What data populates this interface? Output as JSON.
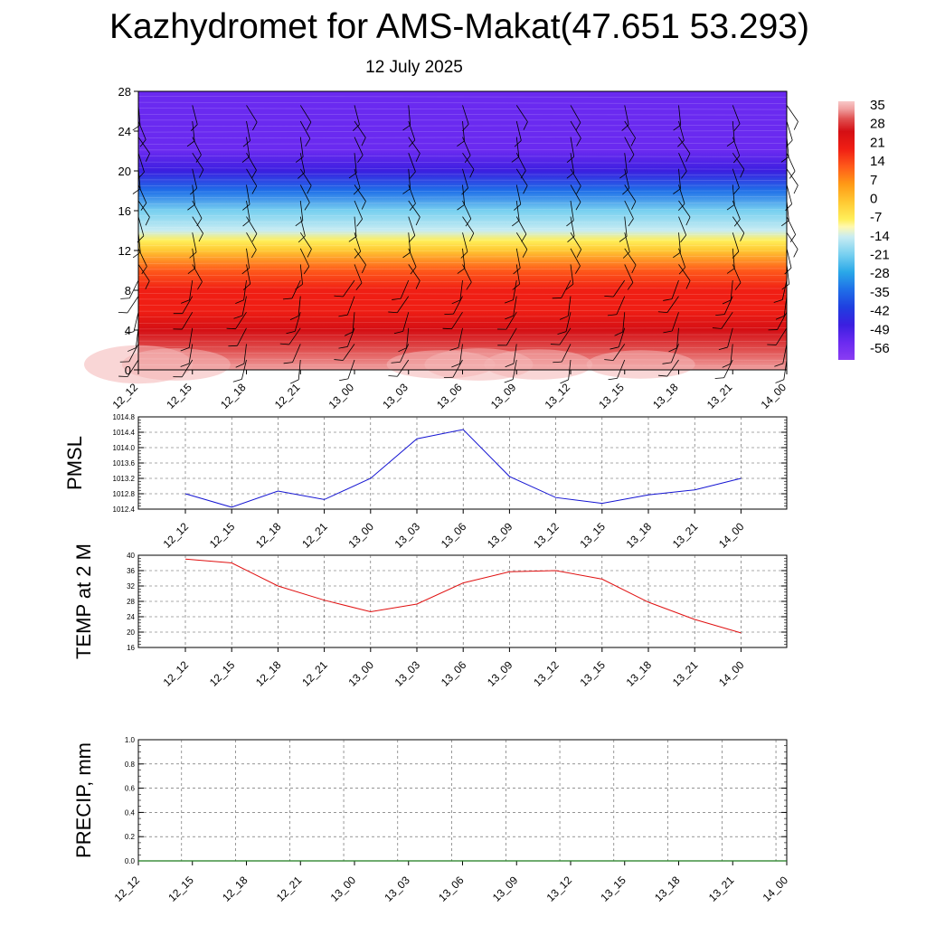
{
  "header": {
    "title": "Kazhydromet for AMS-Makat(47.651 53.293)",
    "date": "12 July 2025"
  },
  "chart_data": [
    {
      "type": "heatmap",
      "title": "",
      "xlabel": "",
      "ylabel": "",
      "x_ticks": [
        "12_12",
        "12_15",
        "12_18",
        "12_21",
        "13_00",
        "13_03",
        "13_06",
        "13_09",
        "13_12",
        "13_15",
        "13_18",
        "13_21",
        "14_00"
      ],
      "y_ticks": [
        "0",
        "4",
        "8",
        "12",
        "16",
        "20",
        "24",
        "28"
      ],
      "ylim": [
        0,
        28
      ],
      "colorbar_labels": [
        "35",
        "28",
        "21",
        "14",
        "7",
        "0",
        "-7",
        "-14",
        "-21",
        "-28",
        "-35",
        "-42",
        "-49",
        "-56"
      ],
      "colorbar_range": [
        -63,
        40
      ],
      "temperature_profile": {
        "levels": [
          0,
          2,
          4,
          6,
          8,
          10,
          12,
          13,
          14,
          16,
          18,
          20,
          22,
          24,
          26,
          28
        ],
        "values": [
          38,
          33,
          28,
          24,
          18,
          12,
          3,
          -5,
          -14,
          -24,
          -36,
          -48,
          -55,
          -58,
          -57,
          -56
        ]
      },
      "overlay": "wind barbs",
      "colors": [
        "#f7c0c0",
        "#d40f14",
        "#ff3a1a",
        "#ff9a16",
        "#ffe832",
        "#fffb9a",
        "#b8e4f0",
        "#2aa8e8",
        "#1f5fe8",
        "#3b1fe0",
        "#6a2af0",
        "#8a3cf2"
      ]
    },
    {
      "type": "line",
      "ylabel": "PMSL",
      "x_ticks": [
        "12_12",
        "12_15",
        "12_18",
        "12_21",
        "13_00",
        "13_03",
        "13_06",
        "13_09",
        "13_12",
        "13_15",
        "13_18",
        "13_21",
        "14_00"
      ],
      "y_ticks": [
        "1012.4",
        "1012.8",
        "1013.2",
        "1013.6",
        "1014.0",
        "1014.4",
        "1014.8"
      ],
      "ylim": [
        1012.4,
        1014.8
      ],
      "series": [
        {
          "color": "#1414d2",
          "values": [
            1012.8,
            1012.45,
            1012.87,
            1012.65,
            1013.2,
            1014.23,
            1014.47,
            1013.25,
            1012.7,
            1012.55,
            1012.77,
            1012.9,
            1013.2
          ]
        }
      ]
    },
    {
      "type": "line",
      "ylabel": "TEMP at 2 M",
      "x_ticks": [
        "12_12",
        "12_15",
        "12_18",
        "12_21",
        "13_00",
        "13_03",
        "13_06",
        "13_09",
        "13_12",
        "13_15",
        "13_18",
        "13_21",
        "14_00"
      ],
      "y_ticks": [
        "16",
        "20",
        "24",
        "28",
        "32",
        "36",
        "40"
      ],
      "ylim": [
        16,
        40
      ],
      "series": [
        {
          "color": "#e01010",
          "values": [
            39.0,
            38.0,
            32.0,
            28.3,
            25.3,
            27.3,
            32.8,
            35.7,
            36.0,
            33.8,
            27.8,
            23.3,
            19.8
          ]
        }
      ]
    },
    {
      "type": "line",
      "ylabel": "PRECIP, mm",
      "x_ticks": [
        "12_12",
        "12_15",
        "12_18",
        "12_21",
        "13_00",
        "13_03",
        "13_06",
        "13_09",
        "13_12",
        "13_15",
        "13_18",
        "13_21",
        "14_00"
      ],
      "y_ticks": [
        "0.0",
        "0.2",
        "0.4",
        "0.6",
        "0.8",
        "1.0"
      ],
      "ylim": [
        0,
        1
      ],
      "series": [
        {
          "color": "#1a7a1a",
          "values": [
            0,
            0,
            0,
            0,
            0,
            0,
            0,
            0,
            0,
            0,
            0,
            0,
            0
          ]
        }
      ]
    }
  ]
}
